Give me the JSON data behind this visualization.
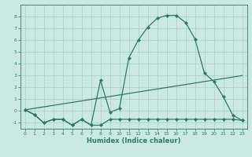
{
  "xlabel": "Humidex (Indice chaleur)",
  "background_color": "#cce8e4",
  "grid_color": "#aaccc8",
  "line_color": "#2a7a6a",
  "xlim": [
    -0.5,
    23.5
  ],
  "ylim": [
    -1.5,
    9.0
  ],
  "xticks": [
    0,
    1,
    2,
    3,
    4,
    5,
    6,
    7,
    8,
    9,
    10,
    11,
    12,
    13,
    14,
    15,
    16,
    17,
    18,
    19,
    20,
    21,
    22,
    23
  ],
  "yticks": [
    -1,
    0,
    1,
    2,
    3,
    4,
    5,
    6,
    7,
    8
  ],
  "curve1_x": [
    0,
    1,
    2,
    3,
    4,
    5,
    6,
    7,
    8,
    9,
    10,
    11,
    12,
    13,
    14,
    15,
    16,
    17,
    18,
    19,
    20,
    21,
    22,
    23
  ],
  "curve1_y": [
    0.1,
    -0.3,
    -1.0,
    -0.7,
    -0.7,
    -1.2,
    -0.7,
    -1.2,
    2.6,
    -0.1,
    0.2,
    4.5,
    6.0,
    7.1,
    7.85,
    8.1,
    8.1,
    7.5,
    6.1,
    3.2,
    2.5,
    1.2,
    -0.35,
    -0.8
  ],
  "curve2_x": [
    0,
    1,
    2,
    3,
    4,
    5,
    6,
    7,
    8,
    9,
    10,
    11,
    12,
    13,
    14,
    15,
    16,
    17,
    18,
    19,
    20,
    21,
    22,
    23
  ],
  "curve2_y": [
    0.1,
    -0.3,
    -1.0,
    -0.7,
    -0.7,
    -1.2,
    -0.7,
    -1.2,
    -1.2,
    -0.7,
    -0.7,
    -0.7,
    -0.7,
    -0.7,
    -0.7,
    -0.7,
    -0.7,
    -0.7,
    -0.7,
    -0.7,
    -0.7,
    -0.7,
    -0.7,
    -0.8
  ],
  "curve3_x": [
    0,
    23
  ],
  "curve3_y": [
    0.1,
    3.0
  ]
}
